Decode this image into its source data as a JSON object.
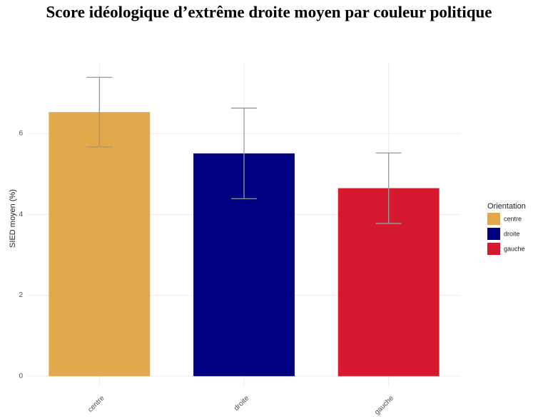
{
  "chart_data": {
    "type": "bar",
    "title": "Score idéologique d’extrême droite moyen par couleur politique",
    "y_label": "SIED moyen (%)",
    "legend_title": "Orientation",
    "categories": [
      "centre",
      "droite",
      "gauche"
    ],
    "values": [
      6.53,
      5.51,
      4.65
    ],
    "errors": [
      0.86,
      1.12,
      0.87
    ],
    "colors": [
      "#e1a84c",
      "#000080",
      "#d7192f"
    ],
    "ylim": [
      -0.25,
      7.75
    ],
    "yticks": [
      0,
      2,
      4,
      6
    ],
    "grid": true,
    "legend": "right"
  }
}
